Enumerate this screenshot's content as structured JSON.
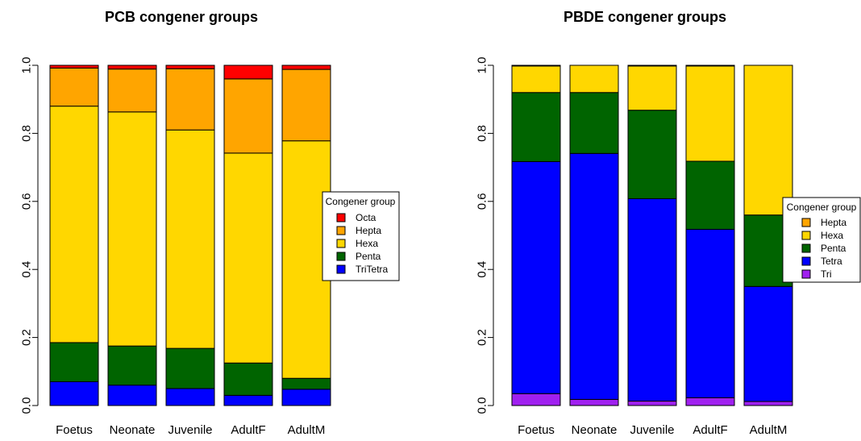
{
  "chart_data": [
    {
      "type": "bar",
      "stacked": true,
      "title": "PCB congener groups",
      "xlabel": "",
      "ylabel": "",
      "ylim": [
        0,
        1
      ],
      "yticks": [
        "0.0",
        "0.2",
        "0.4",
        "0.6",
        "0.8",
        "1.0"
      ],
      "grid": false,
      "categories": [
        "Foetus",
        "Neonate",
        "Juvenile",
        "AdultF",
        "AdultM"
      ],
      "legend": {
        "title": "Congener group",
        "position": "right",
        "order": [
          "Octa",
          "Hepta",
          "Hexa",
          "Penta",
          "TriTetra"
        ]
      },
      "series": [
        {
          "name": "TriTetra",
          "color": "#0000FF",
          "values": [
            0.07,
            0.06,
            0.05,
            0.03,
            0.048
          ]
        },
        {
          "name": "Penta",
          "color": "#006400",
          "values": [
            0.115,
            0.115,
            0.118,
            0.095,
            0.032
          ]
        },
        {
          "name": "Hexa",
          "color": "#FFD700",
          "values": [
            0.695,
            0.688,
            0.642,
            0.617,
            0.698
          ]
        },
        {
          "name": "Hepta",
          "color": "#FFA500",
          "values": [
            0.112,
            0.126,
            0.18,
            0.218,
            0.21
          ]
        },
        {
          "name": "Octa",
          "color": "#FF0000",
          "values": [
            0.008,
            0.011,
            0.01,
            0.04,
            0.012
          ]
        }
      ]
    },
    {
      "type": "bar",
      "stacked": true,
      "title": "PBDE congener groups",
      "xlabel": "",
      "ylabel": "",
      "ylim": [
        0,
        1
      ],
      "yticks": [
        "0.0",
        "0.2",
        "0.4",
        "0.6",
        "0.8",
        "1.0"
      ],
      "grid": false,
      "categories": [
        "Foetus",
        "Neonate",
        "Juvenile",
        "AdultF",
        "AdultM"
      ],
      "legend": {
        "title": "Congener group",
        "position": "right",
        "order": [
          "Hepta",
          "Hexa",
          "Penta",
          "Tetra",
          "Tri"
        ]
      },
      "series": [
        {
          "name": "Tri",
          "color": "#A020F0",
          "values": [
            0.035,
            0.018,
            0.013,
            0.023,
            0.012
          ]
        },
        {
          "name": "Tetra",
          "color": "#0000FF",
          "values": [
            0.682,
            0.723,
            0.595,
            0.495,
            0.338
          ]
        },
        {
          "name": "Penta",
          "color": "#006400",
          "values": [
            0.203,
            0.179,
            0.26,
            0.2,
            0.21
          ]
        },
        {
          "name": "Hexa",
          "color": "#FFD700",
          "values": [
            0.078,
            0.08,
            0.13,
            0.28,
            0.44
          ]
        },
        {
          "name": "Hepta",
          "color": "#FFA500",
          "values": [
            0.002,
            0.0,
            0.002,
            0.002,
            0.0
          ]
        }
      ]
    }
  ]
}
